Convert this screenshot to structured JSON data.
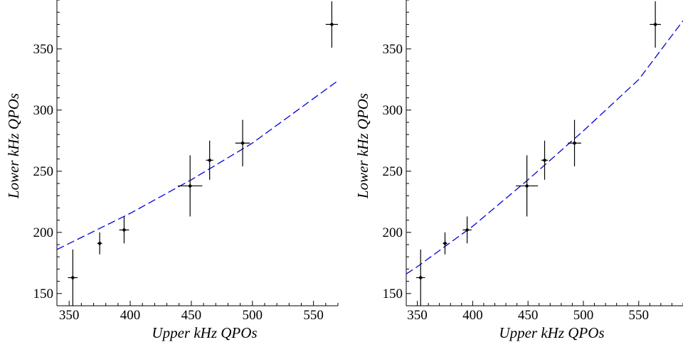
{
  "chart_data": [
    {
      "type": "scatter",
      "xlabel": "Upper kHz QPOs",
      "ylabel": "Lower kHz QPOs",
      "xlim": [
        340,
        570
      ],
      "ylim": [
        140,
        390
      ],
      "xticks": [
        350,
        400,
        450,
        500,
        550
      ],
      "yticks": [
        150,
        200,
        250,
        300,
        350
      ],
      "points": [
        {
          "x": 353,
          "y": 163,
          "xerr": 4,
          "yerr": 23
        },
        {
          "x": 375,
          "y": 191,
          "xerr": 2,
          "yerr": 9
        },
        {
          "x": 395,
          "y": 202,
          "xerr": 4,
          "yerr": 11
        },
        {
          "x": 449,
          "y": 238,
          "xerr": 10,
          "yerr": 25
        },
        {
          "x": 465,
          "y": 259,
          "xerr": 3,
          "yerr": 16
        },
        {
          "x": 492,
          "y": 273,
          "xerr": 6,
          "yerr": 19
        },
        {
          "x": 565,
          "y": 370,
          "xerr": 5,
          "yerr": 19
        }
      ],
      "fit": {
        "x": [
          340,
          400,
          450,
          500,
          570
        ],
        "y": [
          186,
          215.5,
          243,
          273,
          324
        ],
        "color": "#0000dd",
        "style": "dashed"
      },
      "grid": false
    },
    {
      "type": "scatter",
      "xlabel": "Upper kHz QPOs",
      "ylabel": "Lower kHz QPOs",
      "xlim": [
        340,
        590
      ],
      "ylim": [
        140,
        390
      ],
      "xticks": [
        350,
        400,
        450,
        500,
        550
      ],
      "yticks": [
        150,
        200,
        250,
        300,
        350
      ],
      "points": [
        {
          "x": 353,
          "y": 163,
          "xerr": 4,
          "yerr": 23
        },
        {
          "x": 375,
          "y": 191,
          "xerr": 2,
          "yerr": 9
        },
        {
          "x": 395,
          "y": 202,
          "xerr": 4,
          "yerr": 11
        },
        {
          "x": 449,
          "y": 238,
          "xerr": 10,
          "yerr": 25
        },
        {
          "x": 465,
          "y": 259,
          "xerr": 3,
          "yerr": 16
        },
        {
          "x": 492,
          "y": 273,
          "xerr": 6,
          "yerr": 19
        },
        {
          "x": 565,
          "y": 370,
          "xerr": 5,
          "yerr": 19
        }
      ],
      "fit": {
        "x": [
          340,
          350,
          400,
          450,
          500,
          550,
          590
        ],
        "y": [
          166,
          172,
          205,
          243,
          283,
          325,
          373
        ],
        "color": "#0000dd",
        "style": "dashed"
      },
      "grid": false
    }
  ]
}
